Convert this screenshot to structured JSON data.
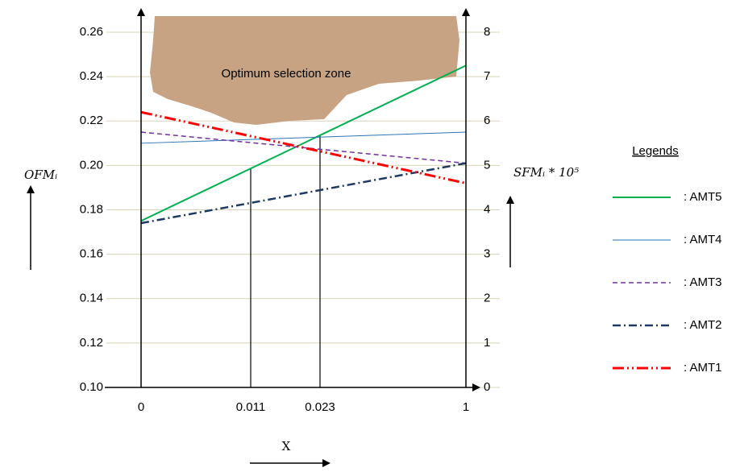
{
  "chart_data": {
    "type": "line",
    "annotation": "Optimum selection zone",
    "y_label": "OFMᵢ",
    "y2_label": "SFMᵢ * 10⁵",
    "x_label": "X",
    "legend_title": "Legends",
    "x": [
      0,
      1
    ],
    "xticks": [
      0,
      0.011,
      0.023,
      1
    ],
    "ylim": [
      0.1,
      0.26
    ],
    "yticks": [
      {
        "value": 0.1,
        "label": "0.10"
      },
      0.12,
      0.14,
      0.16,
      0.18,
      {
        "value": 0.2,
        "label": "0.20"
      },
      0.22,
      0.24,
      0.26
    ],
    "y2lim": [
      0,
      8
    ],
    "y2ticks": [
      0,
      1,
      2,
      3,
      4,
      5,
      6,
      7,
      8
    ],
    "grid": true,
    "legend": "right",
    "series": [
      {
        "name": ": AMT5",
        "color": "#00b050",
        "values": [
          0.175,
          0.245
        ]
      },
      {
        "name": ": AMT4",
        "color": "#2e75b6",
        "values": [
          0.21,
          0.215
        ]
      },
      {
        "name": ": AMT3",
        "color": "#7030a0",
        "values": [
          0.215,
          0.201
        ]
      },
      {
        "name": ": AMT2",
        "color": "#1f3864",
        "values": [
          0.174,
          0.201
        ]
      },
      {
        "name": ": AMT1",
        "color": "#ff0000",
        "values": [
          0.224,
          0.192
        ]
      }
    ]
  }
}
